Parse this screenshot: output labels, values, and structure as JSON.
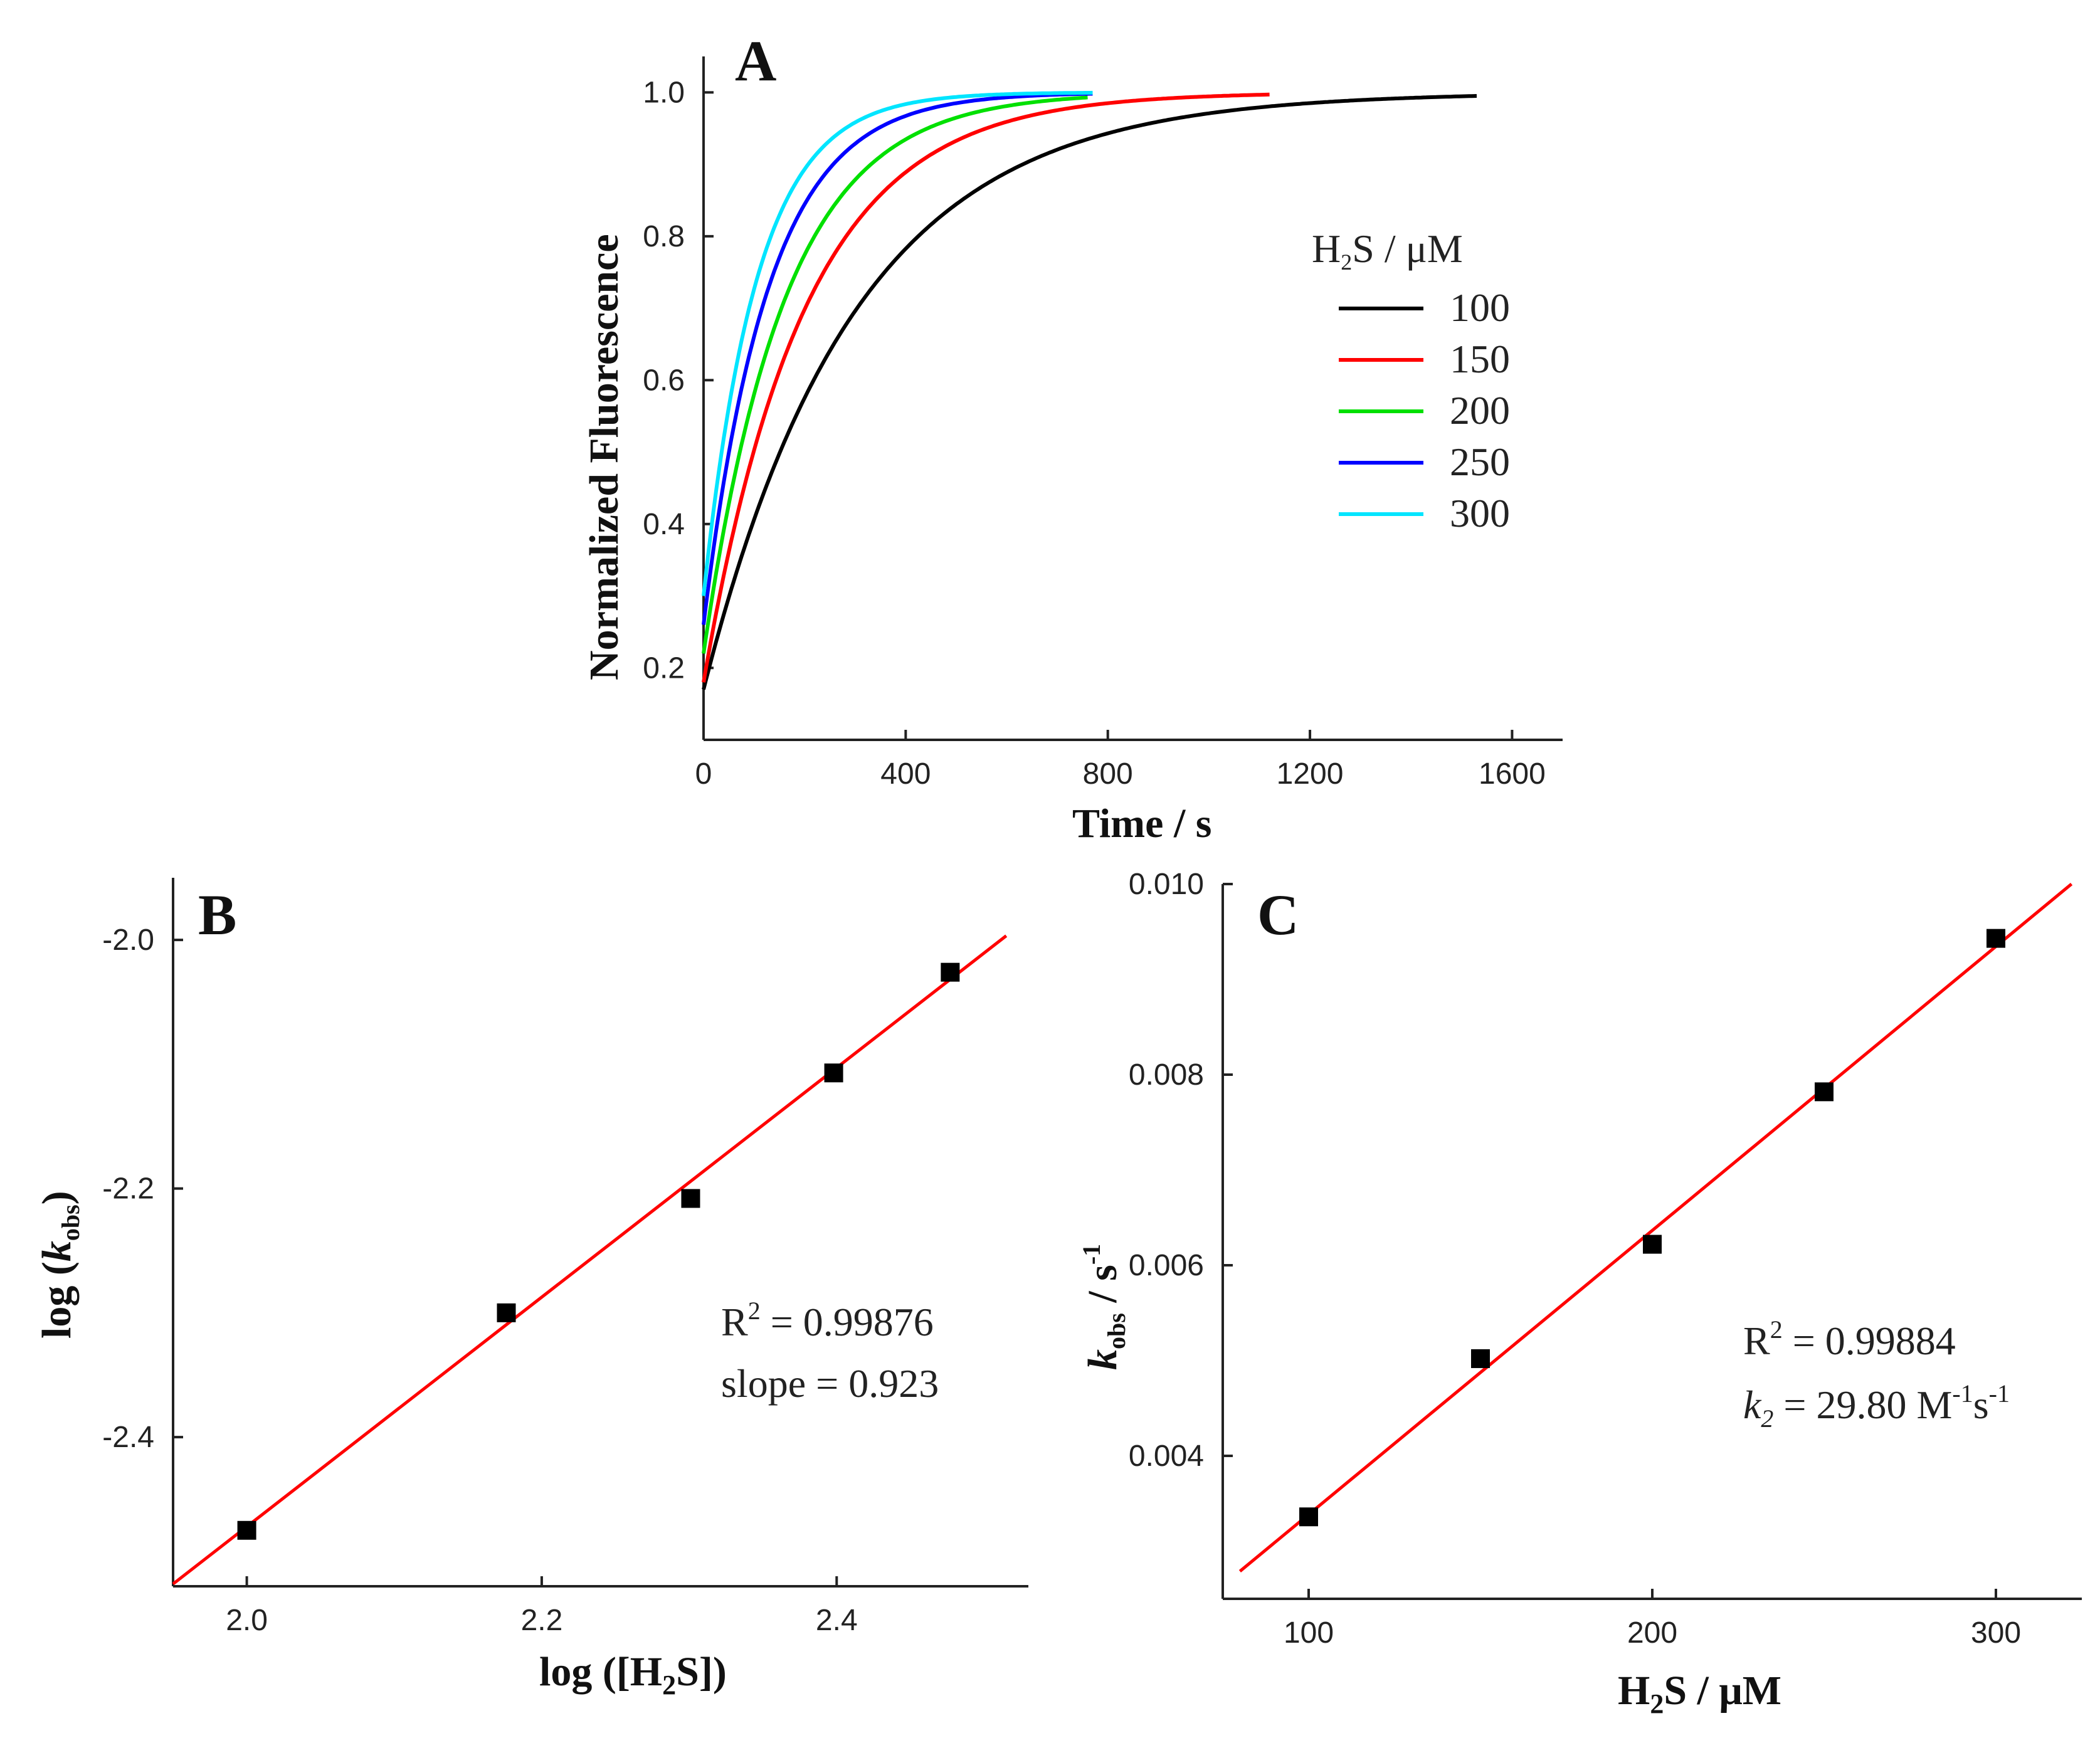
{
  "chart_data": [
    {
      "panel": "A",
      "type": "line",
      "xlabel": "Time / s",
      "ylabel": "Normalized Fluorescence",
      "xlim": [
        0,
        1700
      ],
      "ylim": [
        0.1,
        1.05
      ],
      "xticks": [
        0,
        400,
        800,
        1200,
        1600
      ],
      "yticks": [
        0.2,
        0.4,
        0.6,
        0.8,
        1.0
      ],
      "ytick_labels": [
        "0.2",
        "0.4",
        "0.6",
        "0.8",
        "1.0"
      ],
      "legend": {
        "title_main": "H",
        "title_sub": "2",
        "title_rest": "S / μM",
        "placement": "right-middle"
      },
      "series": [
        {
          "name": "100",
          "color": "#000000",
          "x_end": 1530,
          "y0": 0.17,
          "k": 0.00335
        },
        {
          "name": "150",
          "color": "#ff0000",
          "x_end": 1120,
          "y0": 0.18,
          "k": 0.005
        },
        {
          "name": "200",
          "color": "#00e000",
          "x_end": 760,
          "y0": 0.22,
          "k": 0.0062
        },
        {
          "name": "250",
          "color": "#0000ff",
          "x_end": 770,
          "y0": 0.26,
          "k": 0.0078
        },
        {
          "name": "300",
          "color": "#00e5ff",
          "x_end": 770,
          "y0": 0.3,
          "k": 0.0094
        }
      ]
    },
    {
      "panel": "B",
      "type": "scatter",
      "xlabel_main": "log ([H",
      "xlabel_sub": "2",
      "xlabel_rest": "S])",
      "ylabel_main": "log (",
      "ylabel_k": "k",
      "ylabel_sub": "obs",
      "ylabel_rest": ")",
      "xlim": [
        1.95,
        2.53
      ],
      "ylim": [
        -2.52,
        -1.95
      ],
      "xticks": [
        2.0,
        2.2,
        2.4
      ],
      "xtick_labels": [
        "2.0",
        "2.2",
        "2.4"
      ],
      "yticks": [
        -2.0,
        -2.2,
        -2.4
      ],
      "ytick_labels": [
        "-2.0",
        "-2.2",
        "-2.4"
      ],
      "points": [
        {
          "x": 2.0,
          "y": -2.475
        },
        {
          "x": 2.176,
          "y": -2.3
        },
        {
          "x": 2.301,
          "y": -2.208
        },
        {
          "x": 2.398,
          "y": -2.107
        },
        {
          "x": 2.477,
          "y": -2.026
        }
      ],
      "fit": {
        "slope": 0.923,
        "intercept": -4.318,
        "x_range": [
          1.95,
          2.515
        ],
        "color": "#ff0000"
      },
      "annotation": {
        "r2_prefix": "R",
        "r2_sup": "2",
        "r2_value": " = 0.99876",
        "slope_text": "slope = 0.923"
      }
    },
    {
      "panel": "C",
      "type": "scatter",
      "xlabel_main": "H",
      "xlabel_sub": "2",
      "xlabel_rest": "S / μM",
      "ylabel_k": "k",
      "ylabel_sub": "obs",
      "ylabel_rest": " / s",
      "ylabel_sup": "-1",
      "xlim": [
        75,
        325
      ],
      "ylim": [
        0.0025,
        0.01
      ],
      "xticks": [
        100,
        200,
        300
      ],
      "xtick_labels": [
        "100",
        "200",
        "300"
      ],
      "yticks": [
        0.004,
        0.006,
        0.008,
        0.01
      ],
      "ytick_labels": [
        "0.004",
        "0.006",
        "0.008",
        "0.010"
      ],
      "points": [
        {
          "x": 100,
          "y": 0.00336
        },
        {
          "x": 150,
          "y": 0.00502
        },
        {
          "x": 200,
          "y": 0.00622
        },
        {
          "x": 250,
          "y": 0.00782
        },
        {
          "x": 300,
          "y": 0.00943
        }
      ],
      "fit": {
        "slope": 2.98e-05,
        "intercept": 0.000405,
        "x_range": [
          80,
          322
        ],
        "color": "#ff0000"
      },
      "annotation": {
        "r2_prefix": "R",
        "r2_sup": "2",
        "r2_value": " = 0.99884",
        "k2_italic": "k",
        "k2_sub": "2",
        "k2_eq": " = 29.80 M",
        "k2_sup1": "-1",
        "k2_s": "s",
        "k2_sup2": "-1"
      }
    }
  ]
}
